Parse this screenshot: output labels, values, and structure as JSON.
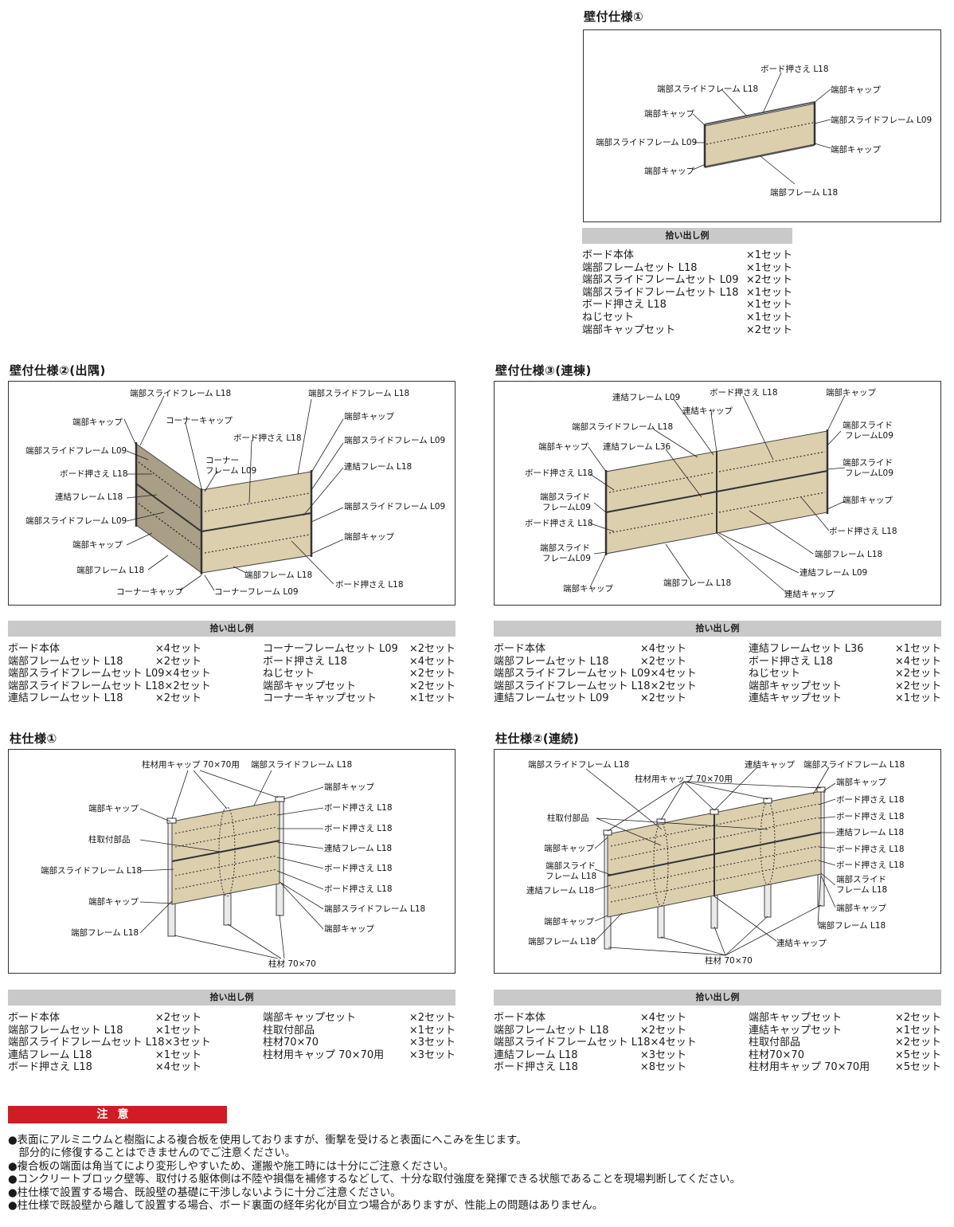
{
  "wall1": {
    "title": "壁付仕様①",
    "labels": [
      "ボード押さえ L18",
      "端部スライドフレーム L18",
      "端部キャップ",
      "端部スライドフレーム L09",
      "端部キャップ",
      "端部キャップ",
      "端部スライドフレーム L09",
      "端部キャップ",
      "端部フレーム L18"
    ],
    "list_header": "拾い出し例",
    "list": [
      {
        "name": "ボード本体",
        "qty": "×1セット"
      },
      {
        "name": "端部フレームセット L18",
        "qty": "×1セット"
      },
      {
        "name": "端部スライドフレームセット L09",
        "qty": "×2セット"
      },
      {
        "name": "端部スライドフレームセット L18",
        "qty": "×1セット"
      },
      {
        "name": "ボード押さえ L18",
        "qty": "×1セット"
      },
      {
        "name": "ねじセット",
        "qty": "×1セット"
      },
      {
        "name": "端部キャップセット",
        "qty": "×2セット"
      }
    ]
  },
  "wall2": {
    "title": "壁付仕様②(出隅)",
    "labels": [
      "端部スライドフレーム L18",
      "端部スライドフレーム L18",
      "端部キャップ",
      "コーナーキャップ",
      "端部キャップ",
      "ボード押さえ L18",
      "端部スライドフレーム L09",
      "端部スライドフレーム L09",
      "コーナー",
      "フレーム L09",
      "連結フレーム L18",
      "ボード押さえ L18",
      "連結フレーム L18",
      "端部スライドフレーム L09",
      "端部スライドフレーム L09",
      "端部キャップ",
      "端部キャップ",
      "端部フレーム L18",
      "端部フレーム L18",
      "ボード押さえ L18",
      "コーナーキャップ",
      "コーナーフレーム L09"
    ],
    "list_header": "拾い出し例",
    "list_left": [
      {
        "name": "ボード本体",
        "qty": "×4セット"
      },
      {
        "name": "端部フレームセット L18",
        "qty": "×2セット"
      },
      {
        "name": "端部スライドフレームセット L09",
        "qty": "×4セット"
      },
      {
        "name": "端部スライドフレームセット L18",
        "qty": "×2セット"
      },
      {
        "name": "連結フレームセット L18",
        "qty": "×2セット"
      }
    ],
    "list_right": [
      {
        "name": "コーナーフレームセット L09",
        "qty": "×2セット"
      },
      {
        "name": "ボード押さえ L18",
        "qty": "×4セット"
      },
      {
        "name": "ねじセット",
        "qty": "×2セット"
      },
      {
        "name": "端部キャップセット",
        "qty": "×2セット"
      },
      {
        "name": "コーナーキャップセット",
        "qty": "×1セット"
      }
    ]
  },
  "wall3": {
    "title": "壁付仕様③(連棟)",
    "labels": [
      "連結フレーム L09",
      "ボード押さえ L18",
      "端部キャップ",
      "連結キャップ",
      "端部スライドフレーム L18",
      "端部スライド",
      "フレームL09",
      "端部キャップ",
      "連結フレーム L36",
      "端部スライド",
      "フレームL09",
      "ボード押さえ L18",
      "端部キャップ",
      "端部スライド",
      "フレームL09",
      "ボード押さえ L18",
      "ボード押さえ L18",
      "端部スライド",
      "フレームL09",
      "端部フレーム L18",
      "連結フレーム L09",
      "端部キャップ",
      "端部フレーム L18",
      "連結キャップ"
    ],
    "list_header": "拾い出し例",
    "list_left": [
      {
        "name": "ボード本体",
        "qty": "×4セット"
      },
      {
        "name": "端部フレームセット L18",
        "qty": "×2セット"
      },
      {
        "name": "端部スライドフレームセット L09",
        "qty": "×4セット"
      },
      {
        "name": "端部スライドフレームセット L18",
        "qty": "×2セット"
      },
      {
        "name": "連結フレームセット L09",
        "qty": "×2セット"
      }
    ],
    "list_right": [
      {
        "name": "連結フレームセット L36",
        "qty": "×1セット"
      },
      {
        "name": "ボード押さえ L18",
        "qty": "×4セット"
      },
      {
        "name": "ねじセット",
        "qty": "×2セット"
      },
      {
        "name": "端部キャップセット",
        "qty": "×2セット"
      },
      {
        "name": "連結キャップセット",
        "qty": "×1セット"
      }
    ]
  },
  "post1": {
    "title": "柱仕様①",
    "labels": [
      "柱材用キャップ 70×70用",
      "端部スライドフレーム L18",
      "端部キャップ",
      "端部キャップ",
      "ボード押さえ L18",
      "ボード押さえ L18",
      "柱取付部品",
      "連結フレーム L18",
      "端部スライドフレーム L18",
      "ボード押さえ L18",
      "ボード押さえ L18",
      "端部キャップ",
      "端部スライドフレーム L18",
      "端部フレーム L18",
      "端部キャップ",
      "柱材 70×70"
    ],
    "list_header": "拾い出し例",
    "list_left": [
      {
        "name": "ボード本体",
        "qty": "×2セット"
      },
      {
        "name": "端部フレームセット L18",
        "qty": "×1セット"
      },
      {
        "name": "端部スライドフレームセット L18",
        "qty": "×3セット"
      },
      {
        "name": "連結フレーム L18",
        "qty": "×1セット"
      },
      {
        "name": "ボード押さえ L18",
        "qty": "×4セット"
      }
    ],
    "list_right": [
      {
        "name": "端部キャップセット",
        "qty": "×2セット"
      },
      {
        "name": "柱取付部品",
        "qty": "×1セット"
      },
      {
        "name": "柱材70×70",
        "qty": "×3セット"
      },
      {
        "name": "柱材用キャップ 70×70用",
        "qty": "×3セット"
      }
    ]
  },
  "post2": {
    "title": "柱仕様②(連続)",
    "labels": [
      "端部スライドフレーム L18",
      "連結キャップ",
      "端部スライドフレーム L18",
      "柱材用キャップ 70×70用",
      "端部キャップ",
      "ボード押さえ L18",
      "柱取付部品",
      "ボード押さえ L18",
      "連結フレーム L18",
      "端部キャップ",
      "ボード押さえ L18",
      "端部スライド",
      "ボード押さえ L18",
      "フレーム L18",
      "端部スライド",
      "連結フレーム L18",
      "フレーム L18",
      "端部キャップ",
      "端部キャップ",
      "端部フレーム L18",
      "端部フレーム L18",
      "連結キャップ",
      "柱材 70×70"
    ],
    "list_header": "拾い出し例",
    "list_left": [
      {
        "name": "ボード本体",
        "qty": "×4セット"
      },
      {
        "name": "端部フレームセット L18",
        "qty": "×2セット"
      },
      {
        "name": "端部スライドフレームセット L18",
        "qty": "×4セット"
      },
      {
        "name": "連結フレーム L18",
        "qty": "×3セット"
      },
      {
        "name": "ボード押さえ L18",
        "qty": "×8セット"
      }
    ],
    "list_right": [
      {
        "name": "端部キャップセット",
        "qty": "×2セット"
      },
      {
        "name": "連結キャップセット",
        "qty": "×1セット"
      },
      {
        "name": "柱取付部品",
        "qty": "×2セット"
      },
      {
        "name": "柱材70×70",
        "qty": "×5セット"
      },
      {
        "name": "柱材用キャップ 70×70用",
        "qty": "×5セット"
      }
    ]
  },
  "notice": {
    "title": "注意",
    "lines": [
      "●表面にアルミニウムと樹脂による複合板を使用しておりますが、衝撃を受けると表面にへこみを生じます。",
      "　部分的に修復することはできませんのでご注意ください。",
      "●複合板の端面は角当てにより変形しやすいため、運搬や施工時には十分にご注意ください。",
      "●コンクリートブロック壁等、取付ける躯体側は不陸や損傷を補修するなどして、十分な取付強度を発揮できる状態であることを現場判断してください。",
      "●柱仕様で設置する場合、既設壁の基礎に干渉しないように十分ご注意ください。",
      "●柱仕様で既設壁から離して設置する場合、ボード裏面の経年劣化が目立つ場合がありますが、性能上の問題はありません。"
    ]
  },
  "colors": {
    "board": "#dccfae",
    "board_side": "#a99e86",
    "accent_red": "#d01c24",
    "header_gray": "#c9c9c9"
  }
}
